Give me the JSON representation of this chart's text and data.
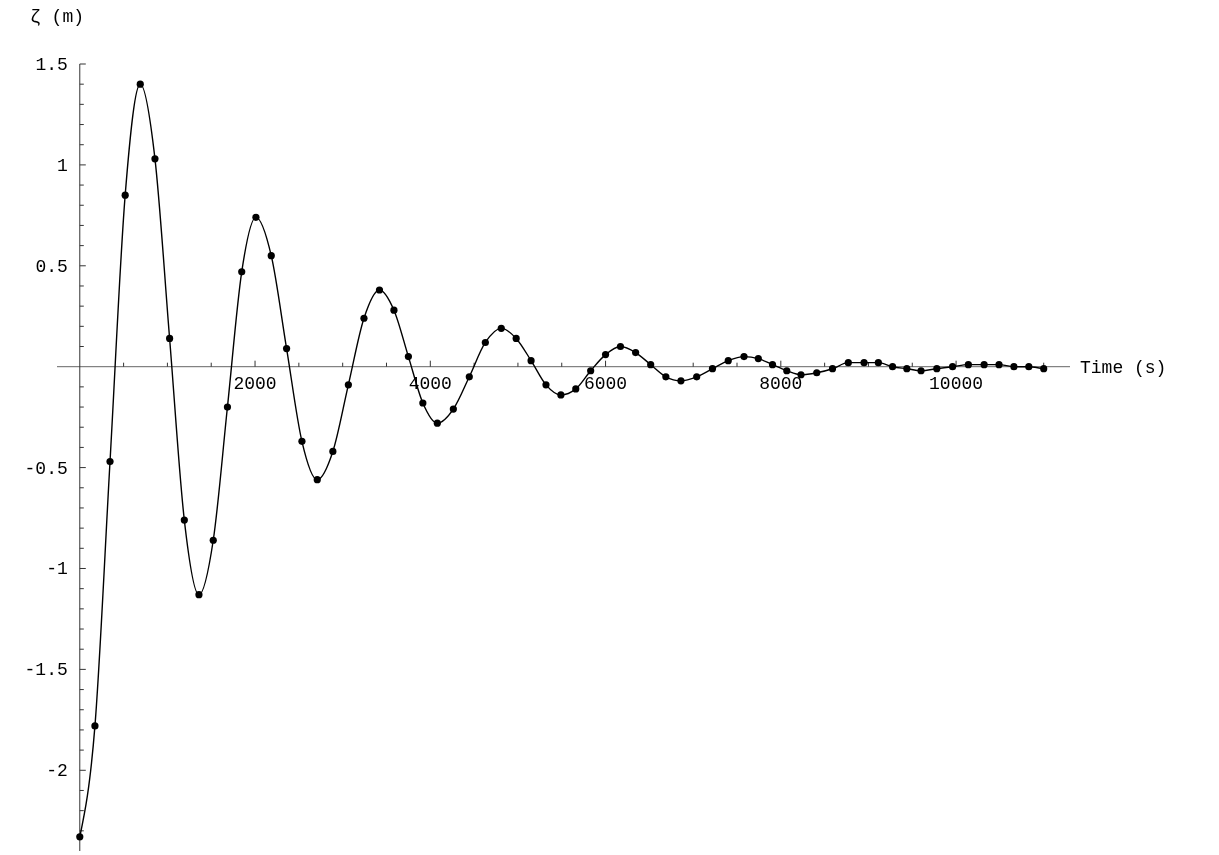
{
  "chart_data": {
    "type": "line",
    "xlabel": "Time (s)",
    "ylabel": "ζ  (m)",
    "xlim": [
      -260,
      11300
    ],
    "ylim": [
      -2.4,
      1.5
    ],
    "xticks": [
      {
        "value": 500,
        "label": null
      },
      {
        "value": 1000,
        "label": null
      },
      {
        "value": 1500,
        "label": null
      },
      2000,
      {
        "value": 2500,
        "label": null
      },
      {
        "value": 3000,
        "label": null
      },
      {
        "value": 3500,
        "label": null
      },
      4000,
      {
        "value": 4500,
        "label": null
      },
      {
        "value": 5000,
        "label": null
      },
      {
        "value": 5500,
        "label": null
      },
      6000,
      {
        "value": 6500,
        "label": null
      },
      {
        "value": 7000,
        "label": null
      },
      {
        "value": 7500,
        "label": null
      },
      8000,
      {
        "value": 8500,
        "label": null
      },
      {
        "value": 9000,
        "label": null
      },
      {
        "value": 9500,
        "label": null
      },
      10000,
      {
        "value": 10500,
        "label": null
      },
      {
        "value": 11000,
        "label": null
      }
    ],
    "yticks": [
      {
        "value": -2.3,
        "label": null
      },
      {
        "value": -2.2,
        "label": null
      },
      {
        "value": -2.1,
        "label": null
      },
      -2,
      {
        "value": -1.9,
        "label": null
      },
      {
        "value": -1.8,
        "label": null
      },
      {
        "value": -1.7,
        "label": null
      },
      {
        "value": -1.6,
        "label": null
      },
      -1.5,
      {
        "value": -1.4,
        "label": null
      },
      {
        "value": -1.3,
        "label": null
      },
      {
        "value": -1.2,
        "label": null
      },
      {
        "value": -1.1,
        "label": null
      },
      -1,
      {
        "value": -0.9,
        "label": null
      },
      {
        "value": -0.8,
        "label": null
      },
      {
        "value": -0.7,
        "label": null
      },
      {
        "value": -0.6,
        "label": null
      },
      -0.5,
      {
        "value": -0.4,
        "label": null
      },
      {
        "value": -0.3,
        "label": null
      },
      {
        "value": -0.2,
        "label": null
      },
      {
        "value": -0.1,
        "label": null
      },
      {
        "value": 0.1,
        "label": null
      },
      {
        "value": 0.2,
        "label": null
      },
      {
        "value": 0.3,
        "label": null
      },
      {
        "value": 0.4,
        "label": null
      },
      0.5,
      {
        "value": 0.6,
        "label": null
      },
      {
        "value": 0.7,
        "label": null
      },
      {
        "value": 0.8,
        "label": null
      },
      {
        "value": 0.9,
        "label": null
      },
      1,
      {
        "value": 1.1,
        "label": null
      },
      {
        "value": 1.2,
        "label": null
      },
      {
        "value": 1.3,
        "label": null
      },
      {
        "value": 1.4,
        "label": null
      },
      1.5
    ],
    "grid": false,
    "marker": "circle",
    "line_style": "solid",
    "series": [
      {
        "color": "#000000",
        "x": [
          0,
          173,
          345,
          518,
          690,
          858,
          1025,
          1193,
          1360,
          1523,
          1685,
          1848,
          2010,
          2185,
          2360,
          2535,
          2710,
          2888,
          3065,
          3243,
          3420,
          3585,
          3750,
          3915,
          4080,
          4263,
          4445,
          4628,
          4810,
          4980,
          5150,
          5320,
          5490,
          5660,
          5830,
          6000,
          6170,
          6343,
          6515,
          6688,
          6860,
          7040,
          7220,
          7400,
          7580,
          7743,
          7905,
          8068,
          8230,
          8410,
          8590,
          8770,
          8950,
          9113,
          9275,
          9438,
          9600,
          9780,
          9960,
          10140,
          10320,
          10490,
          10660,
          10830,
          11000
        ],
        "values": [
          -2.33,
          -1.78,
          -0.47,
          0.85,
          1.4,
          1.03,
          0.14,
          -0.76,
          -1.13,
          -0.86,
          -0.2,
          0.47,
          0.74,
          0.55,
          0.09,
          -0.37,
          -0.56,
          -0.42,
          -0.09,
          0.24,
          0.38,
          0.28,
          0.05,
          -0.18,
          -0.28,
          -0.21,
          -0.05,
          0.12,
          0.19,
          0.14,
          0.03,
          -0.09,
          -0.14,
          -0.11,
          -0.02,
          0.06,
          0.1,
          0.07,
          0.01,
          -0.05,
          -0.07,
          -0.05,
          -0.01,
          0.03,
          0.05,
          0.04,
          0.01,
          -0.02,
          -0.04,
          -0.03,
          -0.01,
          0.02,
          0.02,
          0.02,
          0,
          -0.01,
          -0.02,
          -0.01,
          0,
          0.01,
          0.01,
          0.01,
          0,
          0,
          -0.01
        ]
      }
    ]
  }
}
